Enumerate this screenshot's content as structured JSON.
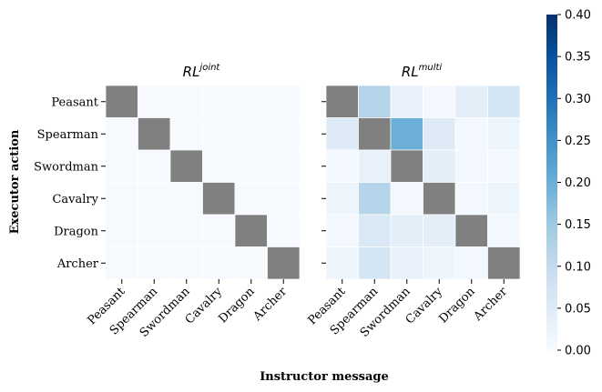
{
  "chart_data": [
    {
      "type": "heatmap",
      "title": "RL",
      "title_superscript": "joint",
      "xlabel": "Instructor message",
      "ylabel": "Executor action",
      "rows": [
        "Peasant",
        "Spearman",
        "Swordman",
        "Cavalry",
        "Dragon",
        "Archer"
      ],
      "columns": [
        "Peasant",
        "Spearman",
        "Swordman",
        "Cavalry",
        "Dragon",
        "Archer"
      ],
      "values": [
        [
          null,
          0.002,
          0.002,
          0.002,
          0.002,
          0.002
        ],
        [
          0.002,
          null,
          0.002,
          0.002,
          0.002,
          0.002
        ],
        [
          0.002,
          0.002,
          null,
          0.002,
          0.002,
          0.002
        ],
        [
          0.002,
          0.002,
          0.002,
          null,
          0.002,
          0.002
        ],
        [
          0.002,
          0.002,
          0.002,
          0.002,
          null,
          0.002
        ],
        [
          0.002,
          0.002,
          0.002,
          0.002,
          0.002,
          null
        ]
      ],
      "diagonal_color": "#808080"
    },
    {
      "type": "heatmap",
      "title": "RL",
      "title_superscript": "multi",
      "xlabel": "Instructor message",
      "ylabel": "Executor action",
      "rows": [
        "Peasant",
        "Spearman",
        "Swordman",
        "Cavalry",
        "Dragon",
        "Archer"
      ],
      "columns": [
        "Peasant",
        "Spearman",
        "Swordman",
        "Cavalry",
        "Dragon",
        "Archer"
      ],
      "values": [
        [
          null,
          0.12,
          0.03,
          0.01,
          0.04,
          0.07
        ],
        [
          0.05,
          null,
          0.2,
          0.05,
          0.01,
          0.02
        ],
        [
          0.01,
          0.03,
          null,
          0.04,
          0.01,
          0.01
        ],
        [
          0.02,
          0.12,
          0.01,
          null,
          0.01,
          0.02
        ],
        [
          0.01,
          0.06,
          0.04,
          0.04,
          null,
          0.01
        ],
        [
          0.02,
          0.07,
          0.03,
          0.02,
          0.01,
          null
        ]
      ],
      "diagonal_color": "#808080"
    }
  ],
  "colorbar": {
    "min": 0.0,
    "max": 0.4,
    "ticks": [
      "0.00",
      "0.05",
      "0.10",
      "0.15",
      "0.20",
      "0.25",
      "0.30",
      "0.35",
      "0.40"
    ],
    "colormap": "Blues"
  }
}
